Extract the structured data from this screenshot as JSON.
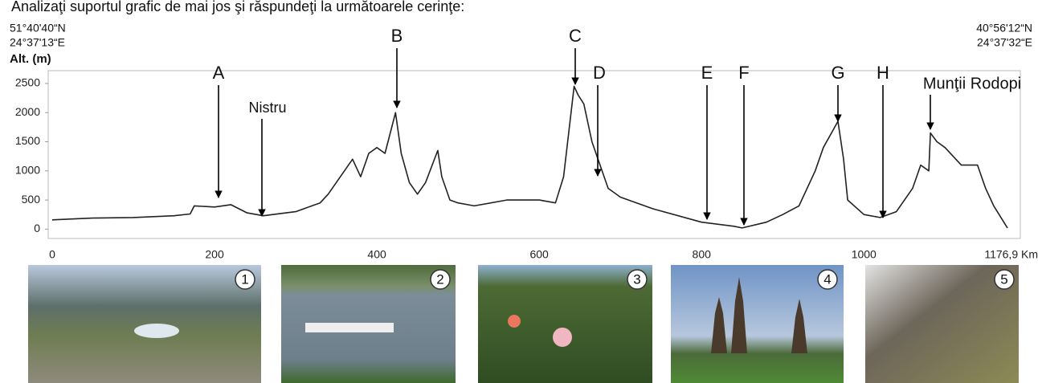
{
  "header": {
    "instruction": "Analizaţi suportul grafic de mai jos şi răspundeţi la următoarele cerinţe:"
  },
  "chart_data": {
    "type": "line",
    "ylabel": "Alt. (m)",
    "start_coords": [
      "51°40'40“N",
      "24°37'13“E"
    ],
    "end_coords": [
      "40°56'12“N",
      "24°37'32“E"
    ],
    "x": [
      0,
      50,
      100,
      150,
      170,
      175,
      200,
      220,
      240,
      260,
      300,
      330,
      340,
      360,
      370,
      380,
      390,
      400,
      410,
      423,
      430,
      440,
      450,
      460,
      475,
      480,
      490,
      500,
      520,
      560,
      600,
      620,
      630,
      643,
      648,
      655,
      665,
      675,
      685,
      700,
      740,
      800,
      840,
      850,
      880,
      900,
      920,
      940,
      950,
      968,
      975,
      980,
      1000,
      1020,
      1040,
      1060,
      1070,
      1080,
      1082,
      1090,
      1100,
      1120,
      1140,
      1150,
      1160,
      1176.9
    ],
    "values": [
      160,
      190,
      200,
      230,
      260,
      400,
      380,
      420,
      280,
      230,
      300,
      450,
      600,
      1000,
      1200,
      900,
      1300,
      1400,
      1300,
      2000,
      1300,
      800,
      600,
      800,
      1350,
      900,
      500,
      450,
      400,
      500,
      500,
      450,
      900,
      2450,
      2300,
      2150,
      1500,
      1100,
      700,
      550,
      350,
      120,
      50,
      20,
      120,
      250,
      400,
      1000,
      1400,
      1850,
      1200,
      500,
      250,
      200,
      300,
      700,
      1100,
      1000,
      1650,
      1500,
      1400,
      1100,
      1100,
      700,
      400,
      20
    ],
    "color": "#222222",
    "xlim": [
      0,
      1176.9
    ],
    "ylim": [
      -160,
      2720
    ],
    "xticks": [
      0,
      200,
      400,
      600,
      800,
      1000,
      {
        "value": 1176.9,
        "label": "1176,9 Km"
      }
    ],
    "yticks": [
      0,
      500,
      1000,
      1500,
      2000,
      2500
    ],
    "grid": false,
    "annotations": [
      "A",
      "Nistru",
      "B",
      "C",
      "D",
      "E",
      "F",
      "G",
      "H",
      "Munţii Rodopi"
    ]
  },
  "photos": [
    "1",
    "2",
    "3",
    "4",
    "5"
  ]
}
